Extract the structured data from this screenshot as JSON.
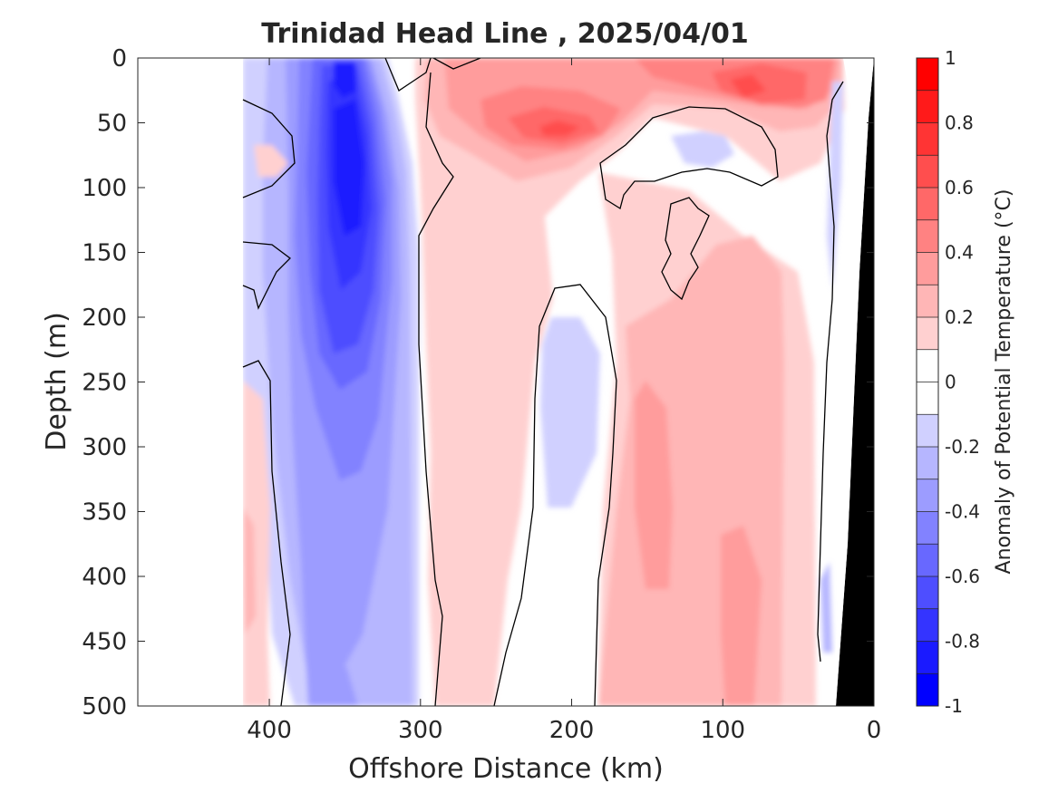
{
  "chart_data": {
    "type": "heatmap",
    "title": "Trinidad Head Line , 2025/04/01",
    "xlabel": "Offshore Distance (km)",
    "ylabel": "Depth (m)",
    "colorbar_label": "Anomaly of Potential Temperature (°C)",
    "xlim": [
      487,
      0
    ],
    "ylim": [
      0,
      500
    ],
    "x_ticks": [
      400,
      300,
      200,
      100,
      0
    ],
    "y_ticks": [
      0,
      50,
      100,
      150,
      200,
      250,
      300,
      350,
      400,
      450,
      500
    ],
    "colorbar_ticks": [
      1,
      0.8,
      0.6,
      0.4,
      0.2,
      0,
      -0.2,
      -0.4,
      -0.6,
      -0.8,
      -1
    ],
    "colorbar_range": [
      -1,
      1
    ],
    "data_extent_km": [
      420,
      0
    ],
    "contour_level": 0,
    "colormap": "blue-white-red",
    "color_levels": [
      {
        "range": [
          0.9,
          1.0
        ],
        "color": "#ff0000"
      },
      {
        "range": [
          0.8,
          0.9
        ],
        "color": "#ff1a1a"
      },
      {
        "range": [
          0.7,
          0.8
        ],
        "color": "#ff3434"
      },
      {
        "range": [
          0.6,
          0.7
        ],
        "color": "#ff4e4e"
      },
      {
        "range": [
          0.5,
          0.6
        ],
        "color": "#ff6868"
      },
      {
        "range": [
          0.4,
          0.5
        ],
        "color": "#ff8282"
      },
      {
        "range": [
          0.3,
          0.4
        ],
        "color": "#ff9c9c"
      },
      {
        "range": [
          0.2,
          0.3
        ],
        "color": "#ffb6b6"
      },
      {
        "range": [
          0.1,
          0.2
        ],
        "color": "#ffd0d0"
      },
      {
        "range": [
          0.0,
          0.1
        ],
        "color": "#ffffff"
      },
      {
        "range": [
          -0.1,
          0.0
        ],
        "color": "#ffffff"
      },
      {
        "range": [
          -0.2,
          -0.1
        ],
        "color": "#d0d0ff"
      },
      {
        "range": [
          -0.3,
          -0.2
        ],
        "color": "#b6b6ff"
      },
      {
        "range": [
          -0.4,
          -0.3
        ],
        "color": "#9c9cff"
      },
      {
        "range": [
          -0.5,
          -0.4
        ],
        "color": "#8282ff"
      },
      {
        "range": [
          -0.6,
          -0.5
        ],
        "color": "#6868ff"
      },
      {
        "range": [
          -0.7,
          -0.6
        ],
        "color": "#4e4eff"
      },
      {
        "range": [
          -0.8,
          -0.7
        ],
        "color": "#3434ff"
      },
      {
        "range": [
          -0.9,
          -0.8
        ],
        "color": "#1a1aff"
      },
      {
        "range": [
          -1.0,
          -0.9
        ],
        "color": "#0000ff"
      }
    ],
    "anomaly_features": [
      {
        "name": "offshore-cold-core",
        "x_range_km": [
          300,
          420
        ],
        "depth_range_m": [
          0,
          500
        ],
        "min_value": -0.9
      },
      {
        "name": "warm-near-surface",
        "x_range_km": [
          50,
          290
        ],
        "depth_range_m": [
          0,
          150
        ],
        "max_value": 0.7
      },
      {
        "name": "warm-subsurface",
        "x_range_km": [
          40,
          190
        ],
        "depth_range_m": [
          150,
          500
        ],
        "max_value": 0.4
      },
      {
        "name": "mid-cold-column",
        "x_range_km": [
          190,
          230
        ],
        "depth_range_m": [
          180,
          420
        ],
        "min_value": -0.2
      },
      {
        "name": "far-offshore-warm",
        "x_range_km": [
          405,
          420
        ],
        "depth_range_m": [
          250,
          500
        ],
        "max_value": 0.3
      }
    ],
    "bottom_topography_color": "#000000",
    "grid": false
  }
}
